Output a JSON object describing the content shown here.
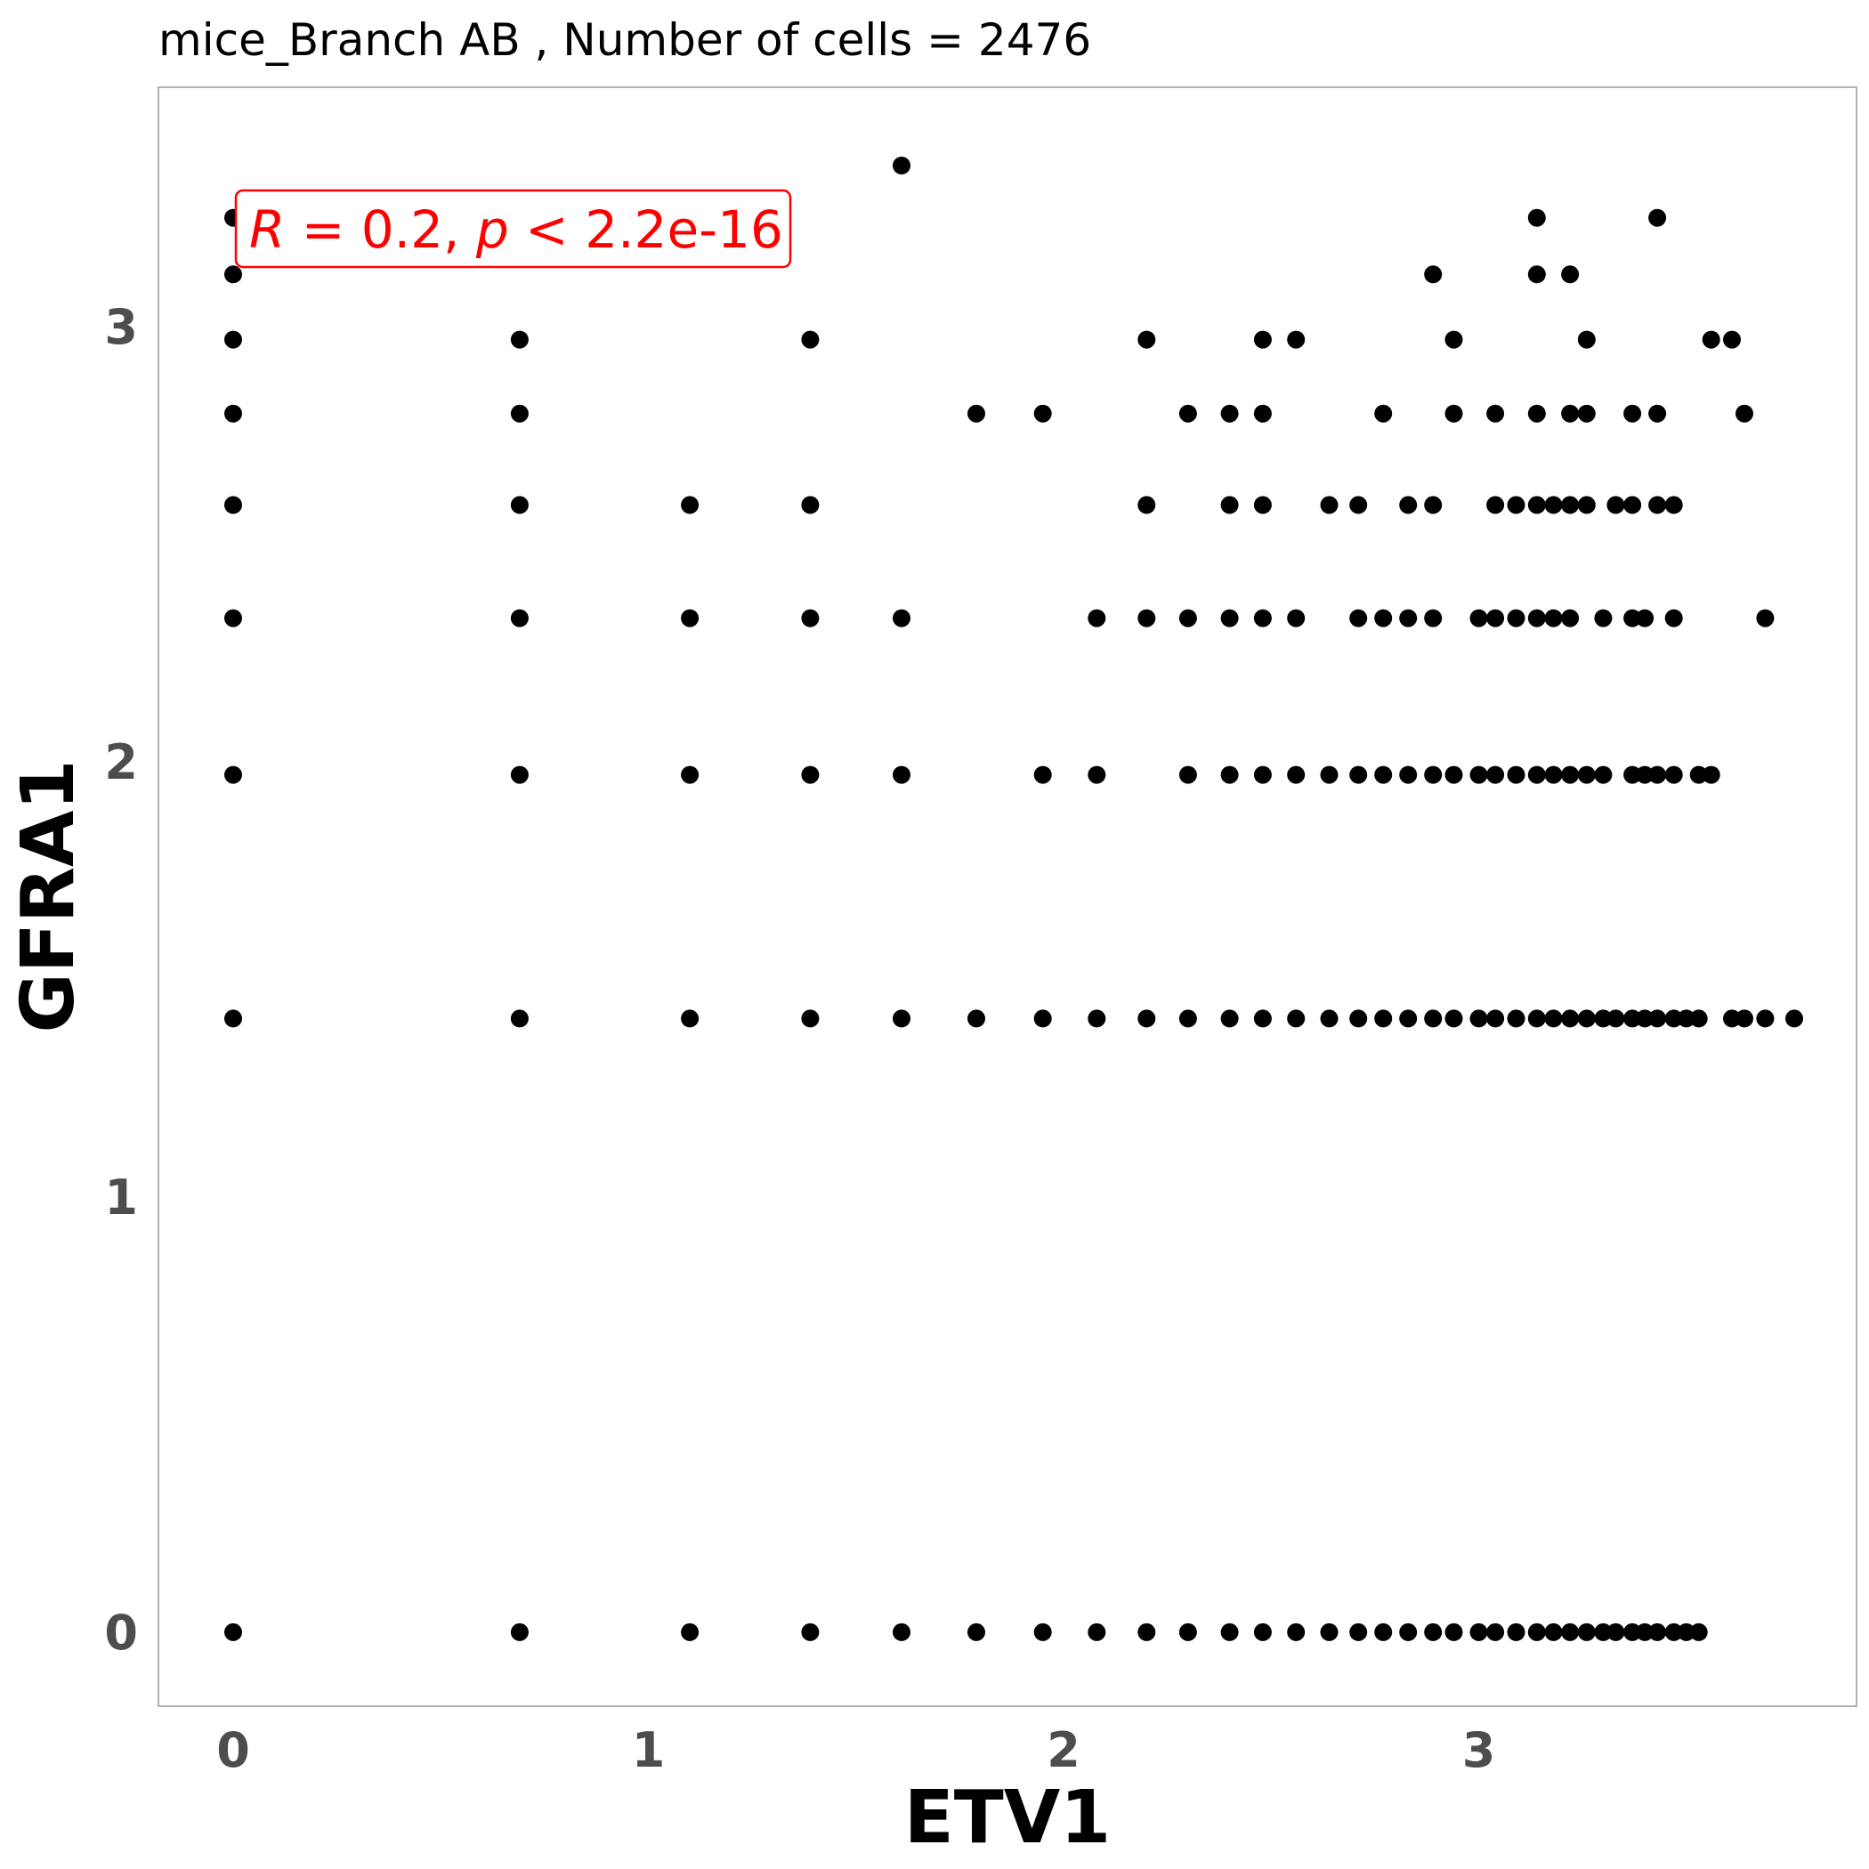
{
  "chart_data": {
    "type": "scatter",
    "title": "mice_Branch AB , Number of cells =  2476",
    "xlabel": "ETV1",
    "ylabel": "GFRA1",
    "xlim": [
      -0.18,
      3.91
    ],
    "ylim": [
      -0.17,
      3.55
    ],
    "x_ticks": [
      0,
      1,
      2,
      3
    ],
    "y_ticks": [
      0,
      1,
      2,
      3
    ],
    "grid": false,
    "annotation": {
      "r_sym": "R",
      "r_rest": " = 0.2, ",
      "p_sym": "p",
      "p_rest": " < 2.2e-16"
    },
    "colors": {
      "point": "#000000",
      "annotation": "#ff0000",
      "panel_border": "#b3b3b3"
    },
    "point_rows": [
      {
        "y": 0,
        "x": [
          0,
          0.69,
          1.1,
          1.39,
          1.61,
          1.79,
          1.95,
          2.08,
          2.2,
          2.3,
          2.4,
          2.48,
          2.56,
          2.64,
          2.71,
          2.77,
          2.83,
          2.89,
          2.94,
          3.0,
          3.04,
          3.09,
          3.14,
          3.18,
          3.22,
          3.26,
          3.3,
          3.33,
          3.37,
          3.4,
          3.43,
          3.47,
          3.5,
          3.53
        ]
      },
      {
        "y": 1.41,
        "x": [
          0,
          0.69,
          1.1,
          1.39,
          1.61,
          1.79,
          1.95,
          2.08,
          2.2,
          2.3,
          2.4,
          2.48,
          2.56,
          2.64,
          2.71,
          2.77,
          2.83,
          2.89,
          2.94,
          3.0,
          3.04,
          3.09,
          3.14,
          3.18,
          3.22,
          3.26,
          3.3,
          3.33,
          3.37,
          3.4,
          3.43,
          3.47,
          3.5,
          3.53,
          3.61,
          3.64,
          3.69,
          3.76
        ]
      },
      {
        "y": 1.97,
        "x": [
          0,
          0.69,
          1.1,
          1.39,
          1.61,
          1.95,
          2.08,
          2.3,
          2.4,
          2.48,
          2.56,
          2.64,
          2.71,
          2.77,
          2.83,
          2.89,
          2.94,
          3.0,
          3.04,
          3.09,
          3.14,
          3.18,
          3.22,
          3.26,
          3.3,
          3.37,
          3.4,
          3.43,
          3.47,
          3.53,
          3.56
        ]
      },
      {
        "y": 2.33,
        "x": [
          0,
          0.69,
          1.1,
          1.39,
          1.61,
          2.08,
          2.2,
          2.3,
          2.4,
          2.48,
          2.56,
          2.71,
          2.77,
          2.83,
          2.89,
          3.0,
          3.04,
          3.09,
          3.14,
          3.18,
          3.22,
          3.3,
          3.37,
          3.4,
          3.47,
          3.69
        ]
      },
      {
        "y": 2.59,
        "x": [
          0,
          0.69,
          1.1,
          1.39,
          2.2,
          2.4,
          2.48,
          2.64,
          2.71,
          2.83,
          2.89,
          3.04,
          3.09,
          3.14,
          3.18,
          3.22,
          3.26,
          3.33,
          3.37,
          3.43,
          3.47
        ]
      },
      {
        "y": 2.8,
        "x": [
          0,
          0.69,
          1.79,
          1.95,
          2.3,
          2.4,
          2.48,
          2.77,
          2.94,
          3.04,
          3.14,
          3.22,
          3.26,
          3.37,
          3.43,
          3.64
        ]
      },
      {
        "y": 2.97,
        "x": [
          0,
          0.69,
          1.39,
          2.2,
          2.48,
          2.56,
          2.94,
          3.26,
          3.56,
          3.61
        ]
      },
      {
        "y": 3.12,
        "x": [
          0,
          2.89,
          3.14,
          3.22
        ]
      },
      {
        "y": 3.25,
        "x": [
          0,
          3.14,
          3.43
        ]
      },
      {
        "y": 3.37,
        "x": [
          1.61
        ]
      }
    ]
  }
}
